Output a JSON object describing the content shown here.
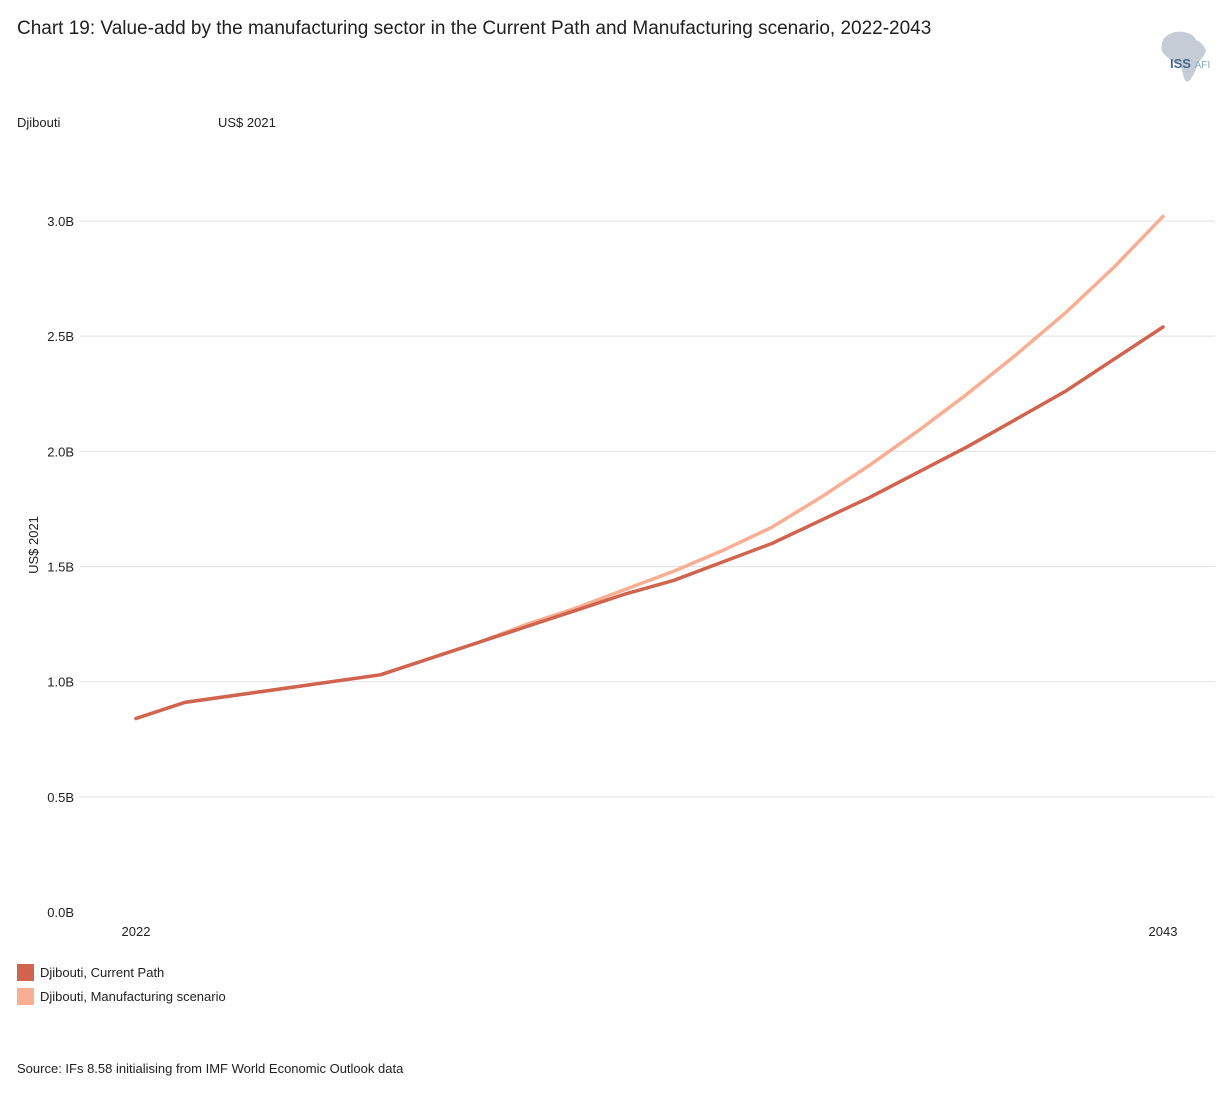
{
  "header": {
    "title": "Chart 19: Value-add by the manufacturing sector in the Current Path and Manufacturing scenario, 2022-2043",
    "country": "Djibouti",
    "unit": "US$ 2021",
    "logo_text": "ISS",
    "logo_subtext": "AFI"
  },
  "source": "Source: IFs 8.58 initialising from IMF World Economic Outlook data",
  "chart_data": {
    "type": "line",
    "title": "Chart 19: Value-add by the manufacturing sector in the Current Path and Manufacturing scenario, 2022-2043",
    "xlabel": "",
    "ylabel": "US$ 2021",
    "x": [
      2022,
      2023,
      2024,
      2025,
      2026,
      2027,
      2028,
      2029,
      2030,
      2031,
      2032,
      2033,
      2034,
      2035,
      2036,
      2037,
      2038,
      2039,
      2040,
      2041,
      2042,
      2043
    ],
    "x_tick_labels": [
      "2022",
      "2043"
    ],
    "ylim": [
      0,
      3.0
    ],
    "y_ticks": [
      0,
      0.5,
      1.0,
      1.5,
      2.0,
      2.5,
      3.0
    ],
    "y_tick_labels": [
      "0.0B",
      "0.5B",
      "1.0B",
      "1.5B",
      "2.0B",
      "2.5B",
      "3.0B"
    ],
    "grid": true,
    "legend_position": "bottom-left",
    "series": [
      {
        "name": "Djibouti, Current Path",
        "color": "#d0644f",
        "values": [
          0.84,
          0.91,
          0.94,
          0.97,
          1.0,
          1.03,
          1.1,
          1.17,
          1.24,
          1.31,
          1.38,
          1.44,
          1.52,
          1.6,
          1.7,
          1.8,
          1.91,
          2.02,
          2.14,
          2.26,
          2.4,
          2.54
        ]
      },
      {
        "name": "Djibouti, Manufacturing scenario",
        "color": "#f8ae92",
        "values": [
          0.84,
          0.91,
          0.94,
          0.97,
          1.0,
          1.03,
          1.1,
          1.17,
          1.25,
          1.32,
          1.4,
          1.48,
          1.57,
          1.67,
          1.8,
          1.94,
          2.09,
          2.25,
          2.42,
          2.6,
          2.8,
          3.02
        ]
      }
    ]
  }
}
